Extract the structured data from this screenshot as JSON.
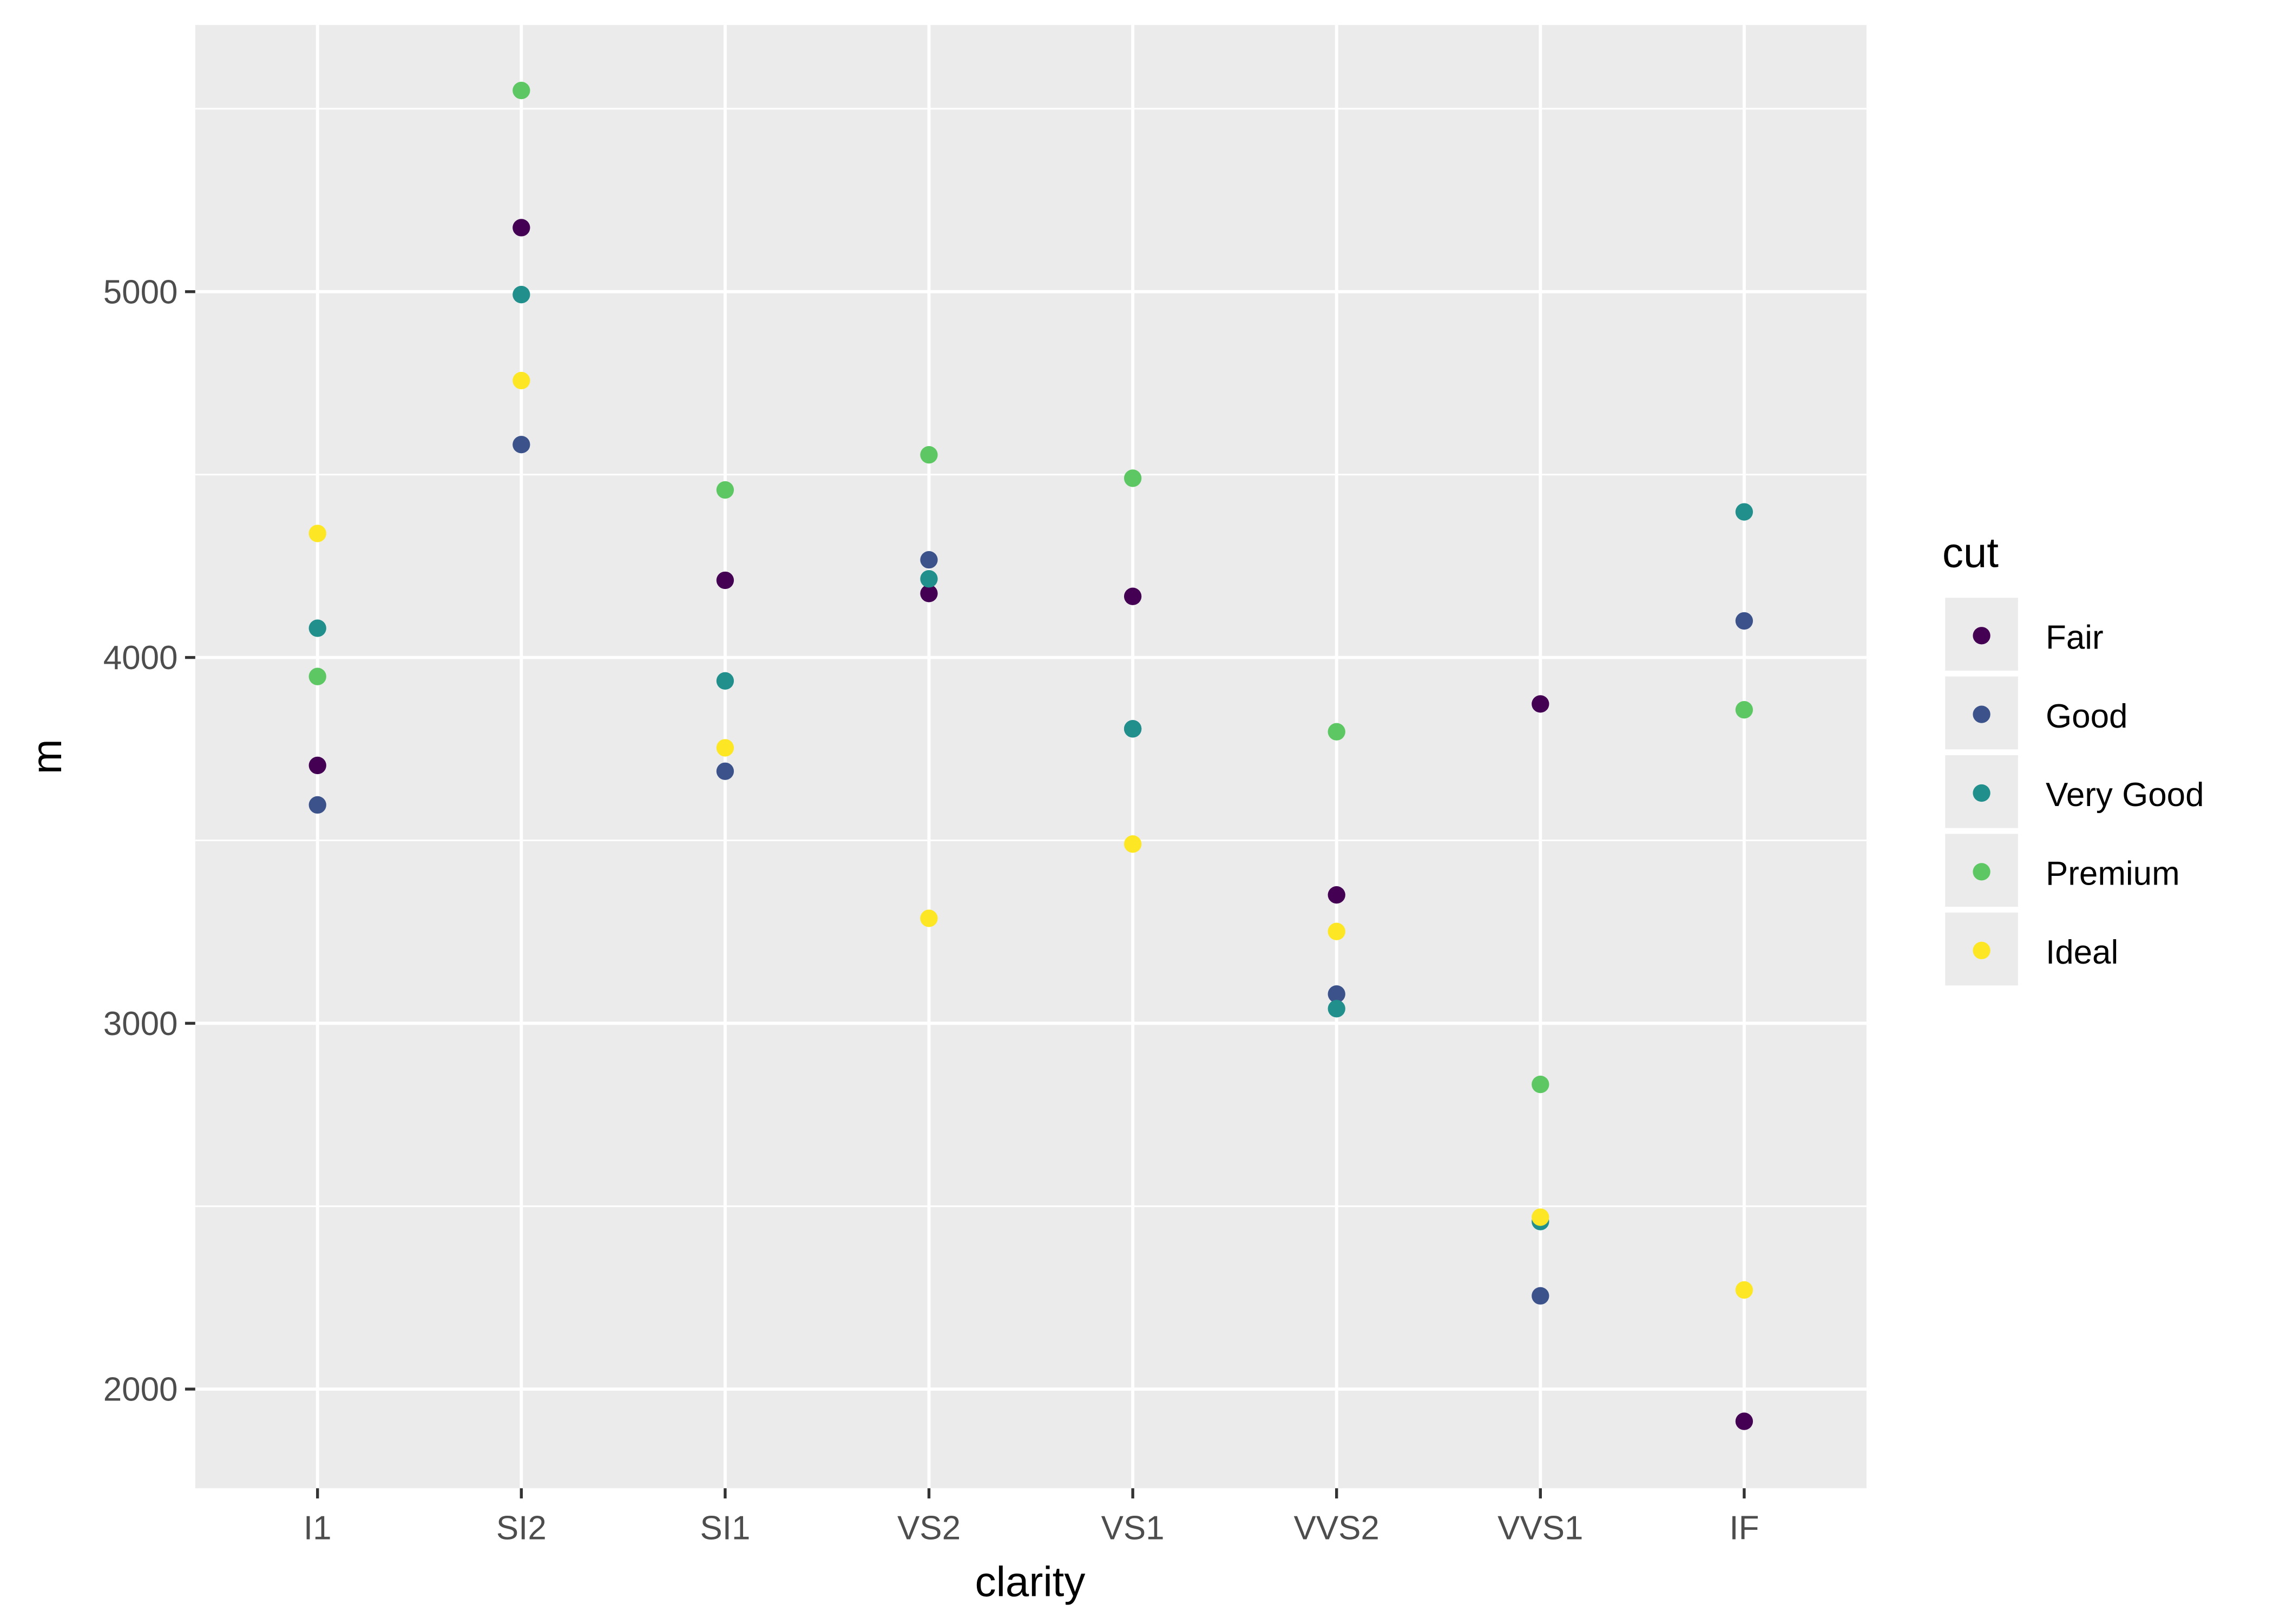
{
  "chart_data": {
    "type": "scatter",
    "title": "",
    "xlabel": "clarity",
    "ylabel": "m",
    "categories": [
      "I1",
      "SI2",
      "SI1",
      "VS2",
      "VS1",
      "VVS2",
      "VVS1",
      "IF"
    ],
    "ylim": [
      1729,
      5729
    ],
    "yticks": [
      2000,
      3000,
      4000,
      5000
    ],
    "grid": true,
    "legend": {
      "title": "cut",
      "placement": "right"
    },
    "series": [
      {
        "name": "Fair",
        "color": "#440154",
        "values": [
          3705,
          5175,
          4211,
          4175,
          4167,
          3351,
          3873,
          1912
        ]
      },
      {
        "name": "Good",
        "color": "#3B528B",
        "values": [
          3597,
          4582,
          3689,
          4267,
          3805,
          3080,
          2255,
          4100
        ]
      },
      {
        "name": "Very Good",
        "color": "#21908C",
        "values": [
          4080,
          4992,
          3936,
          4215,
          3805,
          3040,
          2458,
          4398
        ]
      },
      {
        "name": "Premium",
        "color": "#5DC863",
        "values": [
          3948,
          5550,
          4458,
          4554,
          4490,
          3797,
          2833,
          3857
        ]
      },
      {
        "name": "Ideal",
        "color": "#FDE725",
        "values": [
          4339,
          4757,
          3753,
          3287,
          3490,
          3251,
          2470,
          2271
        ]
      }
    ]
  }
}
